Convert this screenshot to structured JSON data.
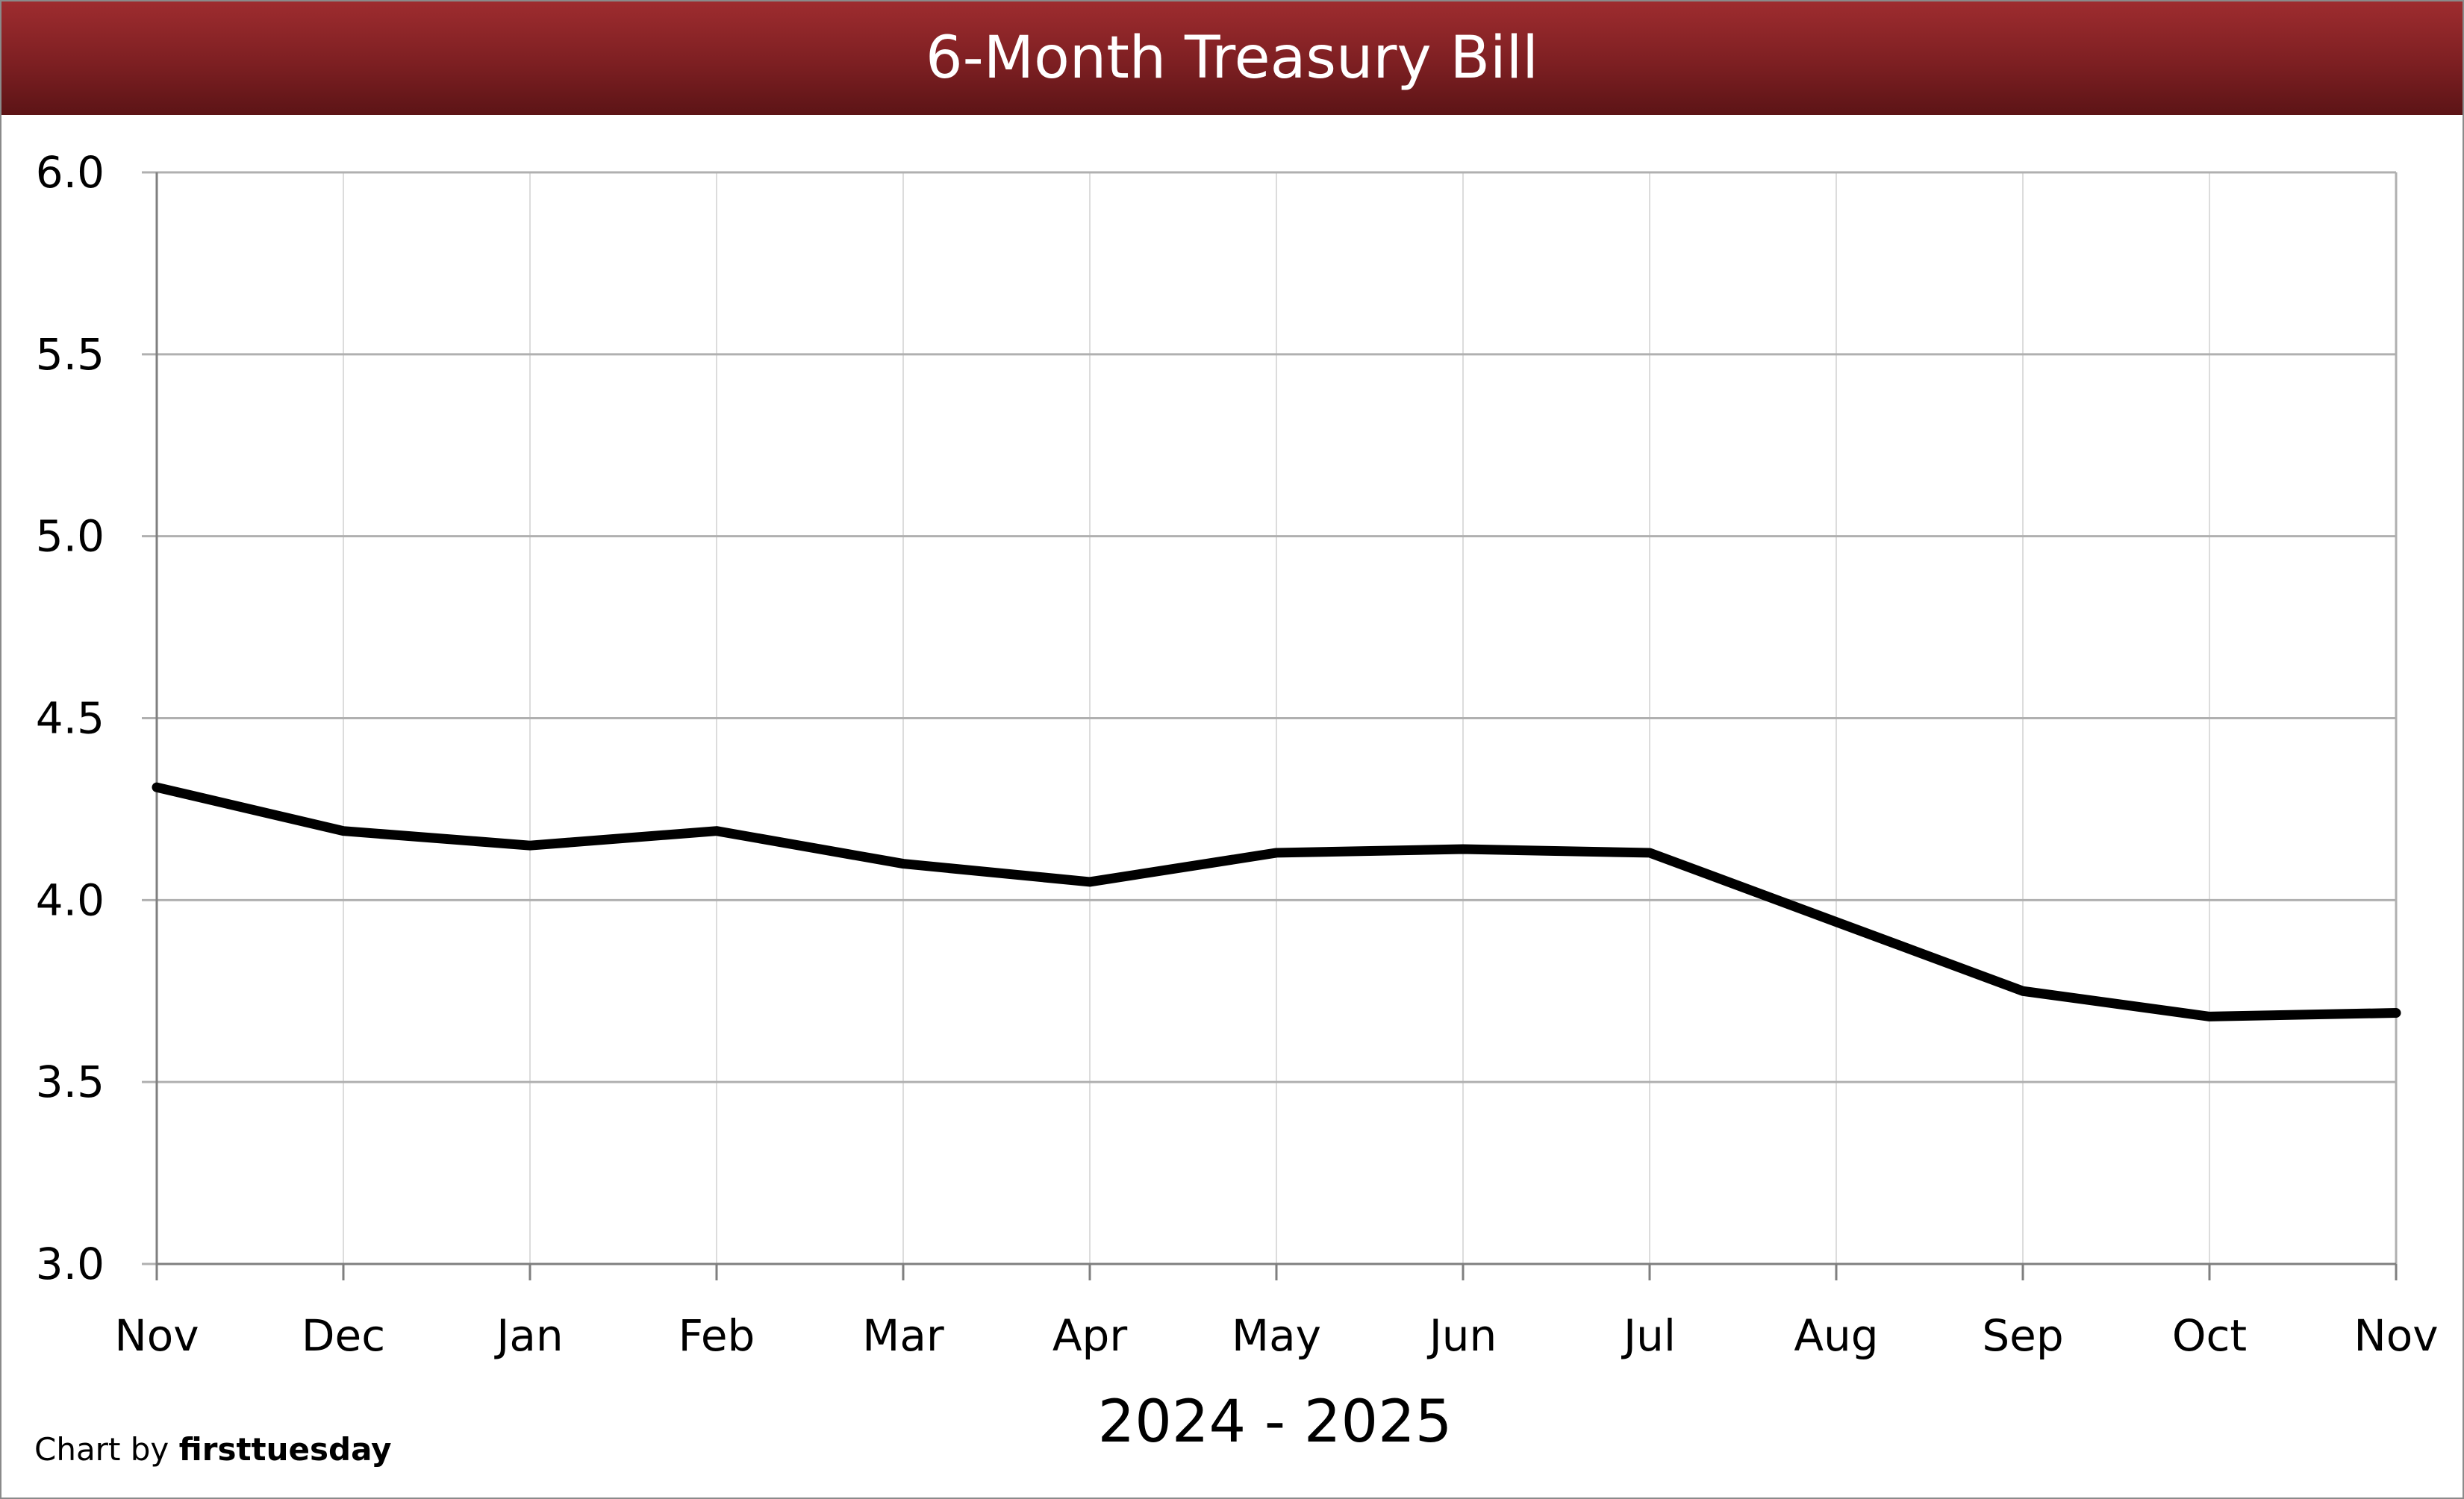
{
  "chart_data": {
    "type": "line",
    "title": "6-Month Treasury Bill",
    "xlabel": "2024 - 2025",
    "ylabel": "",
    "categories": [
      "Nov",
      "Dec",
      "Jan",
      "Feb",
      "Mar",
      "Apr",
      "May",
      "Jun",
      "Jul",
      "Aug",
      "Sep",
      "Oct",
      "Nov"
    ],
    "series": [
      {
        "values": [
          4.31,
          4.19,
          4.15,
          4.19,
          4.1,
          4.05,
          4.13,
          4.14,
          4.13,
          3.94,
          3.75,
          3.68,
          3.69
        ]
      }
    ],
    "ylim": [
      3.0,
      6.0
    ],
    "yticks": [
      "3.0",
      "3.5",
      "4.0",
      "4.5",
      "5.0",
      "5.5",
      "6.0"
    ],
    "grid": true,
    "line_color": "#000000"
  },
  "credit": {
    "prefix": "Chart by ",
    "brand": "firsttuesday"
  },
  "colors": {
    "title_bar": "#8b2426",
    "grid_major": "#b0b0b0",
    "grid_minor": "#dcdcdc"
  }
}
